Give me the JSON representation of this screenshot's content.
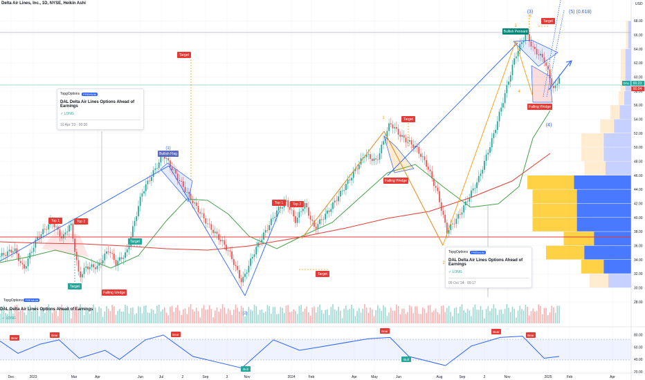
{
  "header": {
    "title": "Delta Air Lines, Inc., 1D, NYSE, Heikin Ashi"
  },
  "price_axis": {
    "currency": "USD",
    "ticks": [
      "68.00",
      "66.00",
      "64.00",
      "62.00",
      "60.00",
      "58.00",
      "56.00",
      "54.00",
      "52.00",
      "50.00",
      "48.00",
      "46.00",
      "44.00",
      "42.00",
      "40.00",
      "38.00",
      "36.00",
      "34.00",
      "32.00",
      "30.00",
      "28.00"
    ],
    "last_price_tag": "60.23",
    "second_price_tag": "60.04",
    "ticker_tag": "DAL"
  },
  "time_axis": {
    "labels": [
      "Dec",
      "2023",
      "Mar",
      "Apr",
      "Jun",
      "Jul",
      "2",
      "Sep",
      "3",
      "Nov",
      "2024",
      "Feb",
      "Apr",
      "May",
      "Jun",
      "Aug",
      "Sep",
      "2",
      "Nov",
      "2025",
      "Feb",
      "Apr"
    ]
  },
  "rsi_axis": {
    "ticks": [
      "80.00",
      "60.00",
      "40.00",
      "20.00"
    ]
  },
  "idea_cards": [
    {
      "brand": "TopgOptions",
      "badge": "PREMIUM",
      "title": "DAL Delta Air Lines Options Ahead of Earnings",
      "direction": "LONG",
      "timestamp": "10 Apr '23 · 00:30"
    },
    {
      "brand": "TopgOptions",
      "badge": "PREMIUM",
      "title": "DAL Delta Air Lines Options Ahead of Earnings",
      "direction": "LONG",
      "timestamp": "09 Oct '24 · 09:17"
    }
  ],
  "volume_pane": {
    "brand": "TopgOptions",
    "badge": "PREMIUM",
    "title": "DAL Delta Air Lines Options Ahead of Earnings",
    "direction": "LONG"
  },
  "annotations": {
    "top1": "Top 1",
    "top2": "Top 2",
    "target": "Target",
    "falling_wedge": "Falling Wedge",
    "bullish_flag": "Bullish Flag",
    "bullish_pennant": "Bullish Pennant",
    "bear": "Bear",
    "bull": "Bull",
    "wave_1": "(1)",
    "wave_2": "(2)",
    "wave_3": "(3)",
    "wave_4": "(4)",
    "wave_5": "(5) (0.618)",
    "num_1": "1",
    "num_2": "2",
    "num_3": "3",
    "num_4": "4",
    "num_5": "5"
  },
  "colors": {
    "up": "#26a69a",
    "down": "#ef5350",
    "ma_green": "#4caf50",
    "ma_red": "#e53935",
    "trend_blue": "#2962ff",
    "fib_orange": "#ff9800",
    "rsi": "#2962ff"
  },
  "chart_data": {
    "type": "line",
    "chart_style": "heikin-ashi candles",
    "price_ylim": [
      28,
      70
    ],
    "price_path": [
      {
        "x": "2022-11-25",
        "y": 34.5
      },
      {
        "x": "2022-12-15",
        "y": 35.5
      },
      {
        "x": "2022-12-28",
        "y": 32.6
      },
      {
        "x": "2023-01-15",
        "y": 37.0
      },
      {
        "x": "2023-02-05",
        "y": 39.5
      },
      {
        "x": "2023-02-20",
        "y": 37.0
      },
      {
        "x": "2023-03-03",
        "y": 39.3
      },
      {
        "x": "2023-03-15",
        "y": 31.5
      },
      {
        "x": "2023-03-25",
        "y": 33.0
      },
      {
        "x": "2023-04-10",
        "y": 33.0
      },
      {
        "x": "2023-04-25",
        "y": 35.5
      },
      {
        "x": "2023-05-05",
        "y": 33.5
      },
      {
        "x": "2023-05-20",
        "y": 35.0
      },
      {
        "x": "2023-06-10",
        "y": 43.5
      },
      {
        "x": "2023-07-10",
        "y": 49.0
      },
      {
        "x": "2023-07-25",
        "y": 46.5
      },
      {
        "x": "2023-08-15",
        "y": 43.0
      },
      {
        "x": "2023-09-10",
        "y": 39.0
      },
      {
        "x": "2023-09-30",
        "y": 36.5
      },
      {
        "x": "2023-10-10",
        "y": 35.0
      },
      {
        "x": "2023-10-27",
        "y": 30.8
      },
      {
        "x": "2023-11-15",
        "y": 35.5
      },
      {
        "x": "2023-12-15",
        "y": 41.0
      },
      {
        "x": "2023-12-28",
        "y": 42.3
      },
      {
        "x": "2024-01-10",
        "y": 39.5
      },
      {
        "x": "2024-01-22",
        "y": 42.0
      },
      {
        "x": "2024-02-05",
        "y": 38.5
      },
      {
        "x": "2024-02-25",
        "y": 41.0
      },
      {
        "x": "2024-03-25",
        "y": 45.5
      },
      {
        "x": "2024-04-15",
        "y": 49.0
      },
      {
        "x": "2024-05-01",
        "y": 48.0
      },
      {
        "x": "2024-05-20",
        "y": 53.5
      },
      {
        "x": "2024-06-05",
        "y": 51.5
      },
      {
        "x": "2024-06-25",
        "y": 50.0
      },
      {
        "x": "2024-07-10",
        "y": 47.5
      },
      {
        "x": "2024-07-25",
        "y": 43.5
      },
      {
        "x": "2024-08-07",
        "y": 38.0
      },
      {
        "x": "2024-08-25",
        "y": 40.5
      },
      {
        "x": "2024-09-20",
        "y": 45.5
      },
      {
        "x": "2024-10-10",
        "y": 51.5
      },
      {
        "x": "2024-10-25",
        "y": 57.0
      },
      {
        "x": "2024-11-10",
        "y": 63.0
      },
      {
        "x": "2024-11-25",
        "y": 66.2
      },
      {
        "x": "2024-12-05",
        "y": 64.0
      },
      {
        "x": "2024-12-20",
        "y": 62.5
      },
      {
        "x": "2025-01-03",
        "y": 58.0
      },
      {
        "x": "2025-01-10",
        "y": 60.1
      }
    ],
    "volume_profile_ranges": [
      {
        "y": [
          44,
          46
        ],
        "share": 1.0
      },
      {
        "y": [
          42,
          44
        ],
        "share": 0.95
      },
      {
        "y": [
          40,
          42
        ],
        "share": 0.95
      },
      {
        "y": [
          38,
          40
        ],
        "share": 0.95
      },
      {
        "y": [
          36,
          38
        ],
        "share": 0.65
      },
      {
        "y": [
          34,
          36
        ],
        "share": 0.82
      },
      {
        "y": [
          32,
          34
        ],
        "share": 0.48
      },
      {
        "y": [
          30,
          32
        ],
        "share": 0.4
      },
      {
        "y": [
          50,
          52
        ],
        "share": 0.48
      },
      {
        "y": [
          48,
          50
        ],
        "share": 0.48
      },
      {
        "y": [
          46,
          48
        ],
        "share": 0.45
      },
      {
        "y": [
          52,
          54
        ],
        "share": 0.3
      },
      {
        "y": [
          54,
          56
        ],
        "share": 0.2
      },
      {
        "y": [
          56,
          58
        ],
        "share": 0.12
      },
      {
        "y": [
          58,
          64
        ],
        "share": 0.1
      },
      {
        "y": [
          64,
          68
        ],
        "share": 0.05
      }
    ],
    "rsi_ylim": [
      20,
      90
    ],
    "rsi_path": [
      {
        "x": "2022-11-25",
        "y": 70
      },
      {
        "x": "2022-12-20",
        "y": 50
      },
      {
        "x": "2023-01-20",
        "y": 65
      },
      {
        "x": "2023-02-15",
        "y": 72
      },
      {
        "x": "2023-03-15",
        "y": 42
      },
      {
        "x": "2023-04-20",
        "y": 55
      },
      {
        "x": "2023-05-10",
        "y": 40
      },
      {
        "x": "2023-06-15",
        "y": 72
      },
      {
        "x": "2023-07-10",
        "y": 80
      },
      {
        "x": "2023-08-20",
        "y": 45
      },
      {
        "x": "2023-09-25",
        "y": 35
      },
      {
        "x": "2023-10-27",
        "y": 26
      },
      {
        "x": "2023-12-10",
        "y": 72
      },
      {
        "x": "2024-01-15",
        "y": 55
      },
      {
        "x": "2024-02-10",
        "y": 60
      },
      {
        "x": "2024-04-20",
        "y": 74
      },
      {
        "x": "2024-05-20",
        "y": 76
      },
      {
        "x": "2024-06-15",
        "y": 45
      },
      {
        "x": "2024-08-05",
        "y": 30
      },
      {
        "x": "2024-09-10",
        "y": 62
      },
      {
        "x": "2024-10-20",
        "y": 76
      },
      {
        "x": "2024-11-20",
        "y": 78
      },
      {
        "x": "2024-12-20",
        "y": 42
      },
      {
        "x": "2025-01-10",
        "y": 45
      }
    ]
  }
}
